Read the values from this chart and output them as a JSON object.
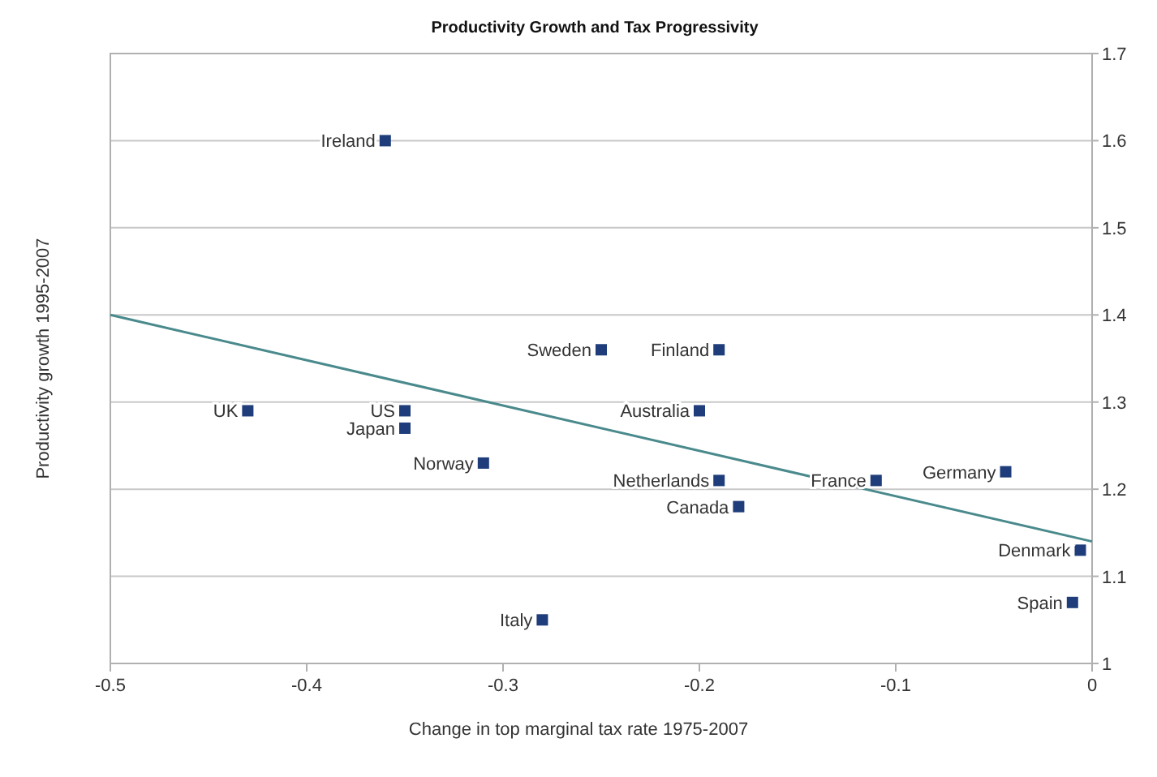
{
  "chart_data": {
    "type": "scatter",
    "title": "Productivity Growth and Tax Progressivity",
    "xlabel": "Change in top marginal tax rate 1975-2007",
    "ylabel": "Productivity growth 1995-2007",
    "series": [
      {
        "color": "#1f3d7a",
        "marker": "square",
        "x": [
          -0.36,
          -0.25,
          -0.19,
          -0.43,
          -0.35,
          -0.35,
          -0.2,
          -0.31,
          -0.19,
          -0.11,
          -0.044,
          -0.18,
          -0.006,
          -0.01,
          -0.28
        ],
        "values": [
          1.6,
          1.36,
          1.36,
          1.29,
          1.29,
          1.27,
          1.29,
          1.23,
          1.21,
          1.21,
          1.22,
          1.18,
          1.13,
          1.07,
          1.05
        ]
      },
      {
        "type": "line",
        "color": "#4a8a8c",
        "x": [
          -0.5,
          0
        ],
        "values": [
          1.4,
          1.14
        ]
      }
    ],
    "annotations": [
      {
        "text": "Ireland",
        "x": -0.36,
        "y": 1.6
      },
      {
        "text": "Sweden",
        "x": -0.25,
        "y": 1.36
      },
      {
        "text": "Finland",
        "x": -0.19,
        "y": 1.36
      },
      {
        "text": "UK",
        "x": -0.43,
        "y": 1.29
      },
      {
        "text": "US",
        "x": -0.35,
        "y": 1.29
      },
      {
        "text": "Japan",
        "x": -0.35,
        "y": 1.27
      },
      {
        "text": "Australia",
        "x": -0.2,
        "y": 1.29
      },
      {
        "text": "Norway",
        "x": -0.31,
        "y": 1.23
      },
      {
        "text": "Netherlands",
        "x": -0.19,
        "y": 1.21
      },
      {
        "text": "France",
        "x": -0.11,
        "y": 1.21
      },
      {
        "text": "Germany",
        "x": -0.044,
        "y": 1.22
      },
      {
        "text": "Canada",
        "x": -0.18,
        "y": 1.18
      },
      {
        "text": "Denmark",
        "x": -0.006,
        "y": 1.13
      },
      {
        "text": "Spain",
        "x": -0.01,
        "y": 1.07
      },
      {
        "text": "Italy",
        "x": -0.28,
        "y": 1.05
      }
    ],
    "xlim": [
      -0.5,
      0
    ],
    "xticks": [
      -0.5,
      -0.4,
      -0.3,
      -0.2,
      -0.1,
      0
    ],
    "ylim": [
      1,
      1.7
    ],
    "yticks": [
      1,
      1.1,
      1.2,
      1.3,
      1.4,
      1.5,
      1.6,
      1.7
    ],
    "grid": "y",
    "line_style": "solid"
  }
}
